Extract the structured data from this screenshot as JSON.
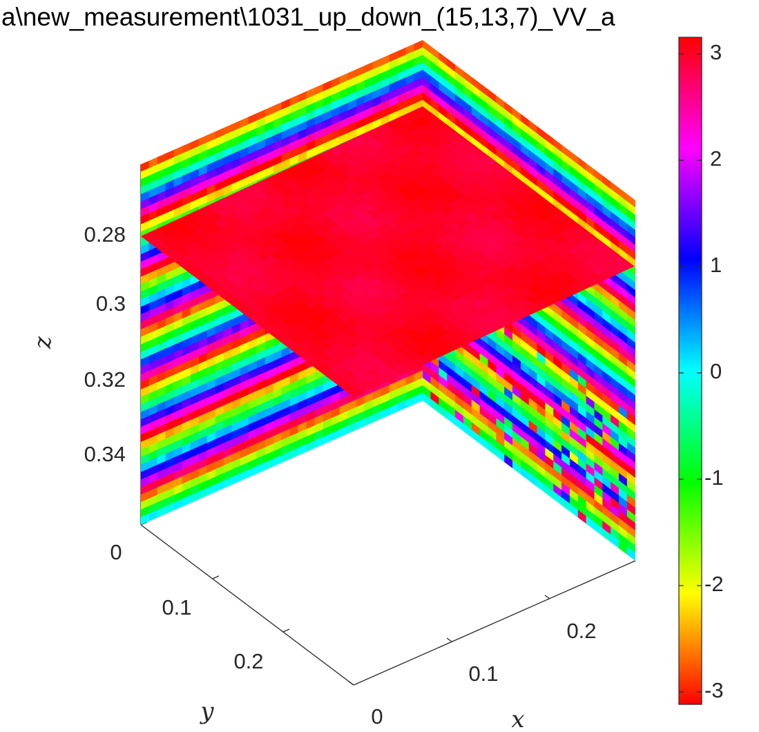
{
  "chart_data": {
    "type": "heatmap",
    "title": "a\\new_measurement\\1031_up_down_(15,13,7)_VV_a",
    "xlabel": "x",
    "ylabel": "y",
    "zlabel": "z",
    "xticks": [
      "0",
      "0.1",
      "0.2"
    ],
    "yticks": [
      "0",
      "0.1",
      "0.2"
    ],
    "zticks": [
      "0.28",
      "0.3",
      "0.32",
      "0.34"
    ],
    "zdir": "reverse",
    "colorbar_ticks": [
      "3",
      "2",
      "1",
      "0",
      "-1",
      "-2",
      "-3"
    ],
    "clim": [
      -3.14,
      3.14
    ],
    "colormap": "hsv",
    "slices": [
      {
        "plane": "x = 0",
        "pattern": "horizontal bands, full color cycle"
      },
      {
        "plane": "y = 0",
        "pattern": "horizontal bands, full color cycle"
      },
      {
        "plane": "z ≈ 0.29",
        "pattern": "near-uniform phase about 3 (red / pink)"
      }
    ]
  }
}
